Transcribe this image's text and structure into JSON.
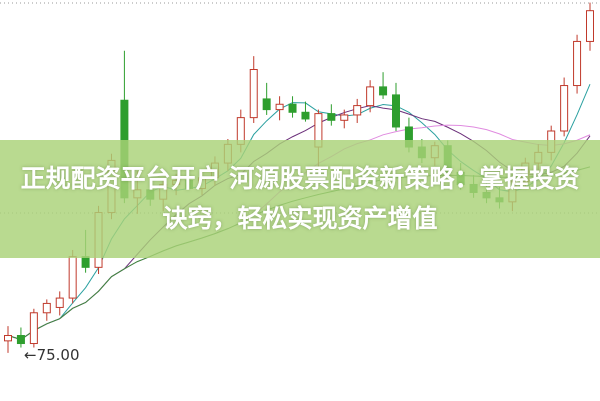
{
  "banner": {
    "title": "正规配资平台开户 河源股票配资新策略：掌握投资诀窍，轻松实现资产增值"
  },
  "chart_data": {
    "type": "candlestick",
    "annotations": [
      {
        "text": "75.00",
        "price": 75.0,
        "arrow": "left"
      }
    ],
    "grid": "dotted horizontal",
    "colors": {
      "up": "#c0392b",
      "down": "#2e9e2e",
      "ma5": "#2aa0a0",
      "ma10": "#6b2f7a",
      "ma20": "#e08be0",
      "ma60": "#3a8a3a",
      "banner": "#aad278"
    },
    "ylim": [
      71,
      101
    ],
    "candles": [
      [
        75.5,
        76.6,
        74.6,
        75.9
      ],
      [
        75.9,
        76.5,
        75.0,
        75.3
      ],
      [
        75.3,
        77.9,
        75.0,
        77.6
      ],
      [
        77.6,
        78.6,
        77.0,
        78.3
      ],
      [
        78.0,
        79.2,
        77.4,
        78.7
      ],
      [
        78.7,
        82.3,
        78.3,
        81.8
      ],
      [
        81.8,
        83.8,
        80.6,
        81.0
      ],
      [
        81.0,
        85.6,
        80.5,
        85.1
      ],
      [
        85.1,
        89.5,
        84.6,
        89.0
      ],
      [
        93.5,
        97.2,
        85.8,
        86.2
      ],
      [
        86.2,
        88.2,
        85.0,
        86.8
      ],
      [
        86.8,
        87.6,
        85.6,
        86.1
      ],
      [
        86.1,
        87.6,
        85.2,
        87.2
      ],
      [
        87.2,
        88.0,
        86.4,
        87.5
      ],
      [
        87.5,
        88.4,
        86.8,
        86.9
      ],
      [
        86.9,
        88.2,
        86.4,
        87.7
      ],
      [
        87.7,
        89.3,
        87.1,
        88.8
      ],
      [
        88.8,
        90.6,
        88.2,
        90.2
      ],
      [
        90.2,
        92.8,
        89.6,
        92.2
      ],
      [
        92.2,
        96.8,
        91.8,
        95.8
      ],
      [
        93.6,
        94.8,
        92.4,
        92.8
      ],
      [
        92.8,
        93.8,
        92.0,
        93.2
      ],
      [
        93.2,
        93.8,
        92.2,
        92.6
      ],
      [
        92.6,
        93.4,
        91.9,
        92.1
      ],
      [
        90.0,
        92.8,
        88.4,
        92.5
      ],
      [
        92.5,
        93.2,
        91.6,
        92.0
      ],
      [
        92.0,
        92.8,
        91.4,
        92.4
      ],
      [
        92.4,
        93.6,
        91.8,
        93.1
      ],
      [
        93.1,
        95.0,
        92.6,
        94.5
      ],
      [
        94.5,
        95.6,
        93.6,
        93.9
      ],
      [
        93.9,
        94.8,
        91.2,
        91.5
      ],
      [
        91.5,
        92.2,
        89.6,
        90.0
      ],
      [
        90.0,
        90.6,
        88.8,
        89.2
      ],
      [
        89.2,
        90.4,
        88.6,
        90.1
      ],
      [
        90.1,
        90.5,
        87.8,
        88.1
      ],
      [
        88.1,
        88.8,
        86.8,
        87.2
      ],
      [
        87.2,
        87.9,
        86.2,
        86.6
      ],
      [
        86.6,
        87.4,
        85.8,
        86.2
      ],
      [
        86.2,
        87.0,
        85.4,
        85.9
      ],
      [
        85.9,
        87.8,
        85.2,
        87.4
      ],
      [
        87.4,
        89.2,
        87.0,
        88.8
      ],
      [
        88.8,
        90.2,
        88.1,
        89.6
      ],
      [
        89.6,
        91.6,
        89.0,
        91.2
      ],
      [
        91.2,
        95.2,
        90.8,
        94.6
      ],
      [
        94.6,
        98.4,
        94.0,
        97.9
      ],
      [
        97.9,
        100.8,
        97.2,
        100.2
      ]
    ]
  }
}
